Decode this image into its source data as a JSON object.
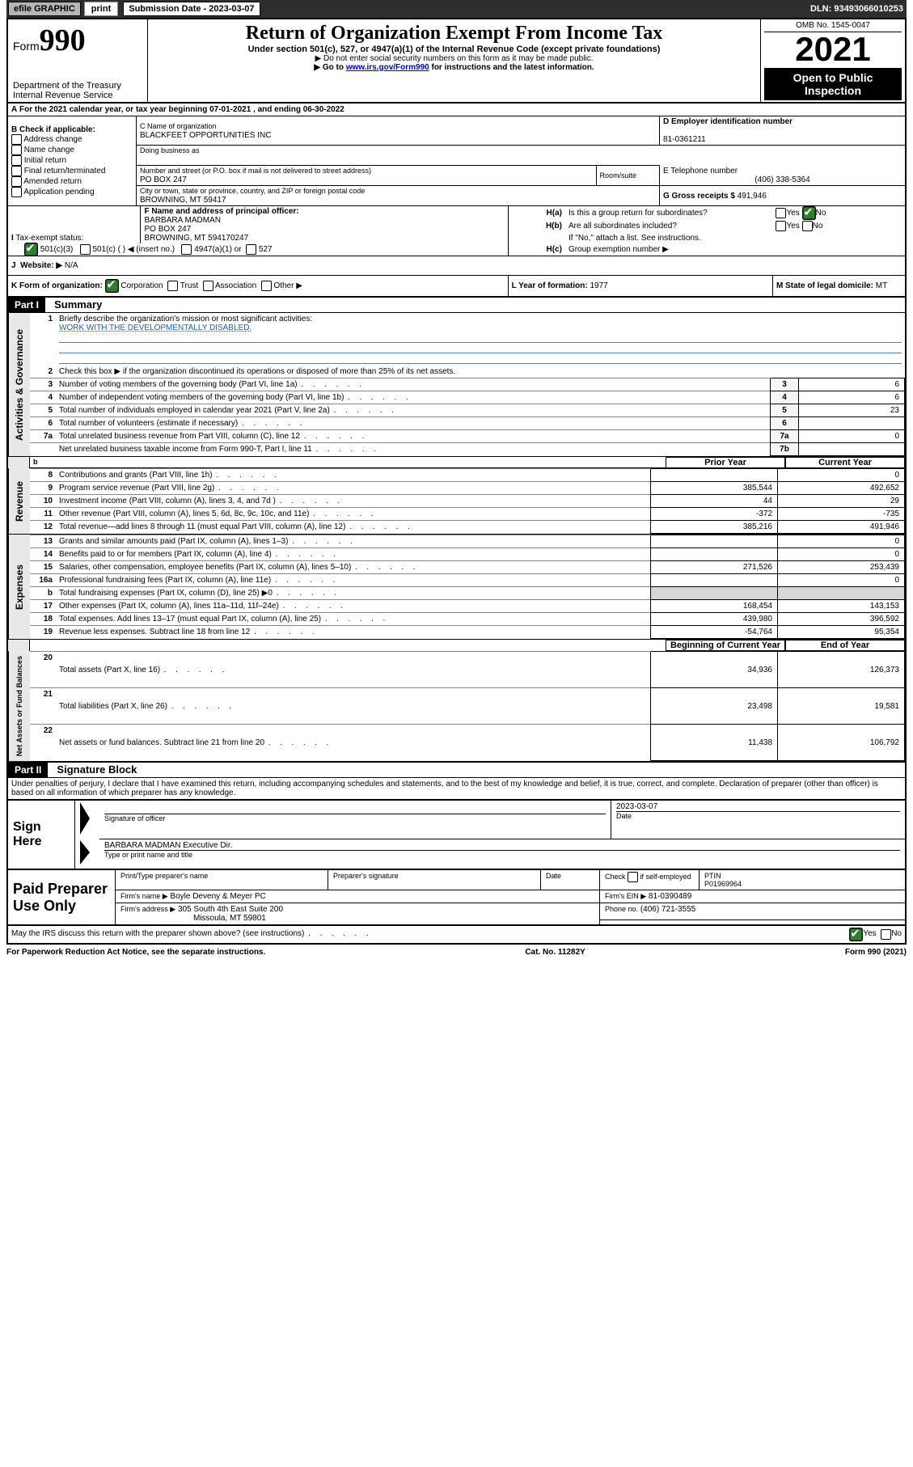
{
  "topbar": {
    "efile": "efile GRAPHIC",
    "print": "print",
    "submission": "Submission Date - 2023-03-07",
    "dln": "DLN: 93493066010253"
  },
  "header": {
    "form_prefix": "Form",
    "form_num": "990",
    "title": "Return of Organization Exempt From Income Tax",
    "subtitle": "Under section 501(c), 527, or 4947(a)(1) of the Internal Revenue Code (except private foundations)",
    "warn1": "▶ Do not enter social security numbers on this form as it may be made public.",
    "warn2_pre": "▶ Go to ",
    "warn2_link": "www.irs.gov/Form990",
    "warn2_post": " for instructions and the latest information.",
    "dept": "Department of the Treasury",
    "irs": "Internal Revenue Service",
    "omb": "OMB No. 1545-0047",
    "year": "2021",
    "open": "Open to Public Inspection"
  },
  "lineA": "For the 2021 calendar year, or tax year beginning 07-01-2021   , and ending 06-30-2022",
  "boxB": {
    "label": "B Check if applicable:",
    "opts": [
      "Address change",
      "Name change",
      "Initial return",
      "Final return/terminated",
      "Amended return",
      "Application pending"
    ]
  },
  "boxC": {
    "label": "C Name of organization",
    "name": "BLACKFEET OPPORTUNITIES INC",
    "dba": "Doing business as",
    "street_label": "Number and street (or P.O. box if mail is not delivered to street address)",
    "room": "Room/suite",
    "street": "PO BOX 247",
    "city_label": "City or town, state or province, country, and ZIP or foreign postal code",
    "city": "BROWNING, MT  59417"
  },
  "boxD": {
    "label": "D Employer identification number",
    "val": "81-0361211"
  },
  "boxE": {
    "label": "E Telephone number",
    "val": "(406) 338-5364"
  },
  "boxG": {
    "label": "G Gross receipts $",
    "val": "491,946"
  },
  "boxF": {
    "label": "F  Name and address of principal officer:",
    "lines": [
      "BARBARA MADMAN",
      "PO BOX 247",
      "BROWNING, MT  594170247"
    ]
  },
  "boxH": {
    "a": "Is this a group return for subordinates?",
    "b": "Are all subordinates included?",
    "note": "If \"No,\" attach a list. See instructions.",
    "c": "Group exemption number ▶",
    "yes": "Yes",
    "no": "No"
  },
  "boxI": {
    "label": "Tax-exempt status:",
    "o1": "501(c)(3)",
    "o2": "501(c) (   ) ◀ (insert no.)",
    "o3": "4947(a)(1) or",
    "o4": "527"
  },
  "boxJ": {
    "label": "Website: ▶",
    "val": "N/A"
  },
  "boxK": {
    "label": "K Form of organization:",
    "o1": "Corporation",
    "o2": "Trust",
    "o3": "Association",
    "o4": "Other ▶"
  },
  "boxL": {
    "label": "L Year of formation:",
    "val": "1977"
  },
  "boxM": {
    "label": "M State of legal domicile:",
    "val": "MT"
  },
  "part1": {
    "hdr": "Part I",
    "title": "Summary"
  },
  "s1": {
    "q1": "Briefly describe the organization's mission or most significant activities:",
    "a1": "WORK WITH THE DEVELOPMENTALLY DISABLED.",
    "q2": "Check this box ▶         if the organization discontinued its operations or disposed of more than 25% of its net assets.",
    "rows_simple": [
      {
        "n": "3",
        "t": "Number of voting members of the governing body (Part VI, line 1a)",
        "k": "3",
        "v": "6"
      },
      {
        "n": "4",
        "t": "Number of independent voting members of the governing body (Part VI, line 1b)",
        "k": "4",
        "v": "6"
      },
      {
        "n": "5",
        "t": "Total number of individuals employed in calendar year 2021 (Part V, line 2a)",
        "k": "5",
        "v": "23"
      },
      {
        "n": "6",
        "t": "Total number of volunteers (estimate if necessary)",
        "k": "6",
        "v": ""
      },
      {
        "n": "7a",
        "t": "Total unrelated business revenue from Part VIII, column (C), line 12",
        "k": "7a",
        "v": "0"
      },
      {
        "n": "",
        "t": "Net unrelated business taxable income from Form 990-T, Part I, line 11",
        "k": "7b",
        "v": ""
      }
    ],
    "col_prior": "Prior Year",
    "col_curr": "Current Year",
    "col_boy": "Beginning of Current Year",
    "col_eoy": "End of Year",
    "rev": [
      {
        "n": "8",
        "t": "Contributions and grants (Part VIII, line 1h)",
        "p": "",
        "c": "0"
      },
      {
        "n": "9",
        "t": "Program service revenue (Part VIII, line 2g)",
        "p": "385,544",
        "c": "492,652"
      },
      {
        "n": "10",
        "t": "Investment income (Part VIII, column (A), lines 3, 4, and 7d )",
        "p": "44",
        "c": "29"
      },
      {
        "n": "11",
        "t": "Other revenue (Part VIII, column (A), lines 5, 6d, 8c, 9c, 10c, and 11e)",
        "p": "-372",
        "c": "-735"
      },
      {
        "n": "12",
        "t": "Total revenue—add lines 8 through 11 (must equal Part VIII, column (A), line 12)",
        "p": "385,216",
        "c": "491,946"
      }
    ],
    "exp": [
      {
        "n": "13",
        "t": "Grants and similar amounts paid (Part IX, column (A), lines 1–3)",
        "p": "",
        "c": "0"
      },
      {
        "n": "14",
        "t": "Benefits paid to or for members (Part IX, column (A), line 4)",
        "p": "",
        "c": "0"
      },
      {
        "n": "15",
        "t": "Salaries, other compensation, employee benefits (Part IX, column (A), lines 5–10)",
        "p": "271,526",
        "c": "253,439"
      },
      {
        "n": "16a",
        "t": "Professional fundraising fees (Part IX, column (A), line 11e)",
        "p": "",
        "c": "0"
      },
      {
        "n": "b",
        "t": "Total fundraising expenses (Part IX, column (D), line 25) ▶0",
        "p": "shade",
        "c": "shade"
      },
      {
        "n": "17",
        "t": "Other expenses (Part IX, column (A), lines 11a–11d, 11f–24e)",
        "p": "168,454",
        "c": "143,153"
      },
      {
        "n": "18",
        "t": "Total expenses. Add lines 13–17 (must equal Part IX, column (A), line 25)",
        "p": "439,980",
        "c": "396,592"
      },
      {
        "n": "19",
        "t": "Revenue less expenses. Subtract line 18 from line 12",
        "p": "-54,764",
        "c": "95,354"
      }
    ],
    "net": [
      {
        "n": "20",
        "t": "Total assets (Part X, line 16)",
        "p": "34,936",
        "c": "126,373"
      },
      {
        "n": "21",
        "t": "Total liabilities (Part X, line 26)",
        "p": "23,498",
        "c": "19,581"
      },
      {
        "n": "22",
        "t": "Net assets or fund balances. Subtract line 21 from line 20",
        "p": "11,438",
        "c": "106,792"
      }
    ]
  },
  "sidelabels": {
    "gov": "Activities & Governance",
    "rev": "Revenue",
    "exp": "Expenses",
    "net": "Net Assets or Fund Balances"
  },
  "part2": {
    "hdr": "Part II",
    "title": "Signature Block"
  },
  "penalty": "Under penalties of perjury, I declare that I have examined this return, including accompanying schedules and statements, and to the best of my knowledge and belief, it is true, correct, and complete. Declaration of preparer (other than officer) is based on all information of which preparer has any knowledge.",
  "sign": {
    "here": "Sign Here",
    "sig_label": "Signature of officer",
    "date_label": "Date",
    "date": "2023-03-07",
    "name": "BARBARA MADMAN  Executive Dir.",
    "name_label": "Type or print name and title"
  },
  "paid": {
    "here": "Paid Preparer Use Only",
    "c1": "Print/Type preparer's name",
    "c2": "Preparer's signature",
    "c3": "Date",
    "c4a": "Check",
    "c4b": "if self-employed",
    "c5": "PTIN",
    "ptin": "P01969964",
    "firm_label": "Firm's name    ▶",
    "firm": "Boyle Deveny & Meyer PC",
    "ein_label": "Firm's EIN ▶",
    "ein": "81-0390489",
    "addr_label": "Firm's address ▶",
    "addr1": "305 South 4th East Suite 200",
    "addr2": "Missoula, MT  59801",
    "phone_label": "Phone no.",
    "phone": "(406) 721-3555"
  },
  "mayirs": "May the IRS discuss this return with the preparer shown above? (see instructions)",
  "footer": {
    "left": "For Paperwork Reduction Act Notice, see the separate instructions.",
    "mid": "Cat. No. 11282Y",
    "right_pre": "Form ",
    "right_b": "990",
    "right_post": " (2021)"
  }
}
